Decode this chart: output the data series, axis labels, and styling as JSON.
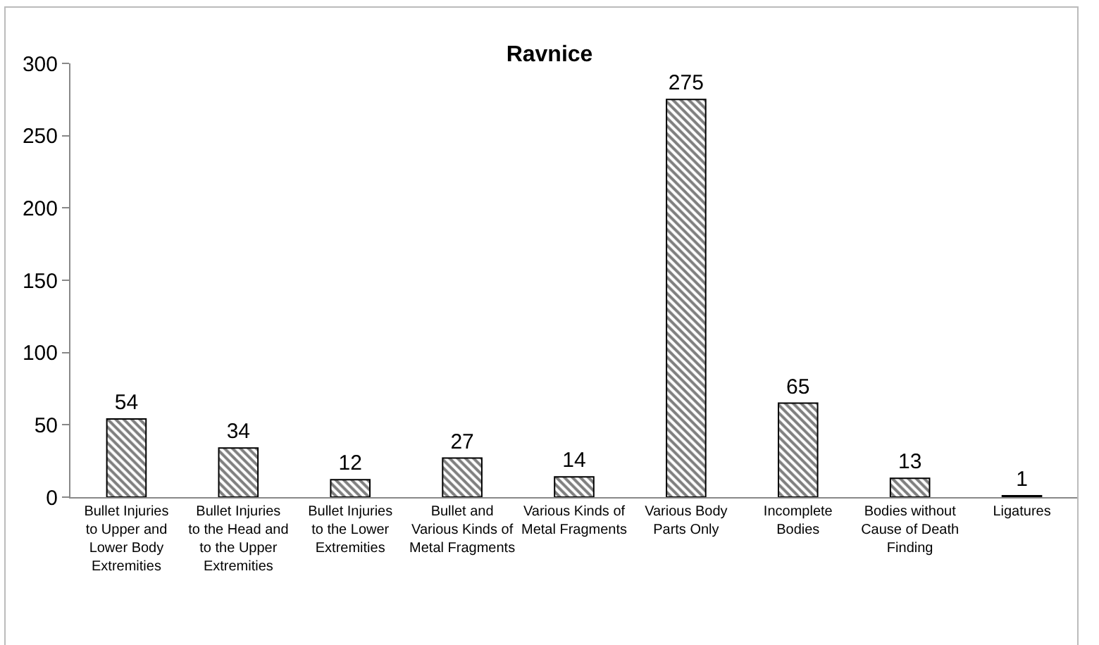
{
  "chart_data": {
    "type": "bar",
    "title": "Ravnice",
    "categories": [
      "Bullet Injuries to Upper and Lower Body Extremities",
      "Bullet Injuries to the Head and to the Upper Extremities",
      "Bullet Injuries to the Lower Extremities",
      "Bullet and Various Kinds of Metal Fragments",
      "Various Kinds of Metal Fragments",
      "Various Body Parts Only",
      "Incomplete Bodies",
      "Bodies without Cause of Death Finding",
      "Ligatures"
    ],
    "values": [
      54,
      34,
      12,
      27,
      14,
      275,
      65,
      13,
      1
    ],
    "color": "#000000",
    "ylim": [
      0,
      300
    ],
    "yticks": [
      0,
      50,
      100,
      150,
      200,
      250,
      300
    ],
    "data_labels": true
  }
}
